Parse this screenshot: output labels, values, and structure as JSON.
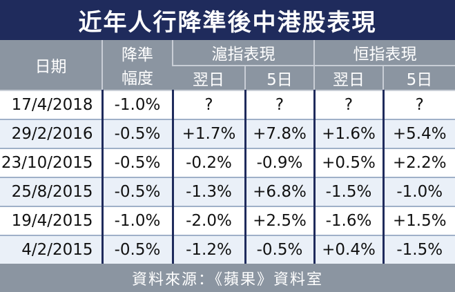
{
  "header": {
    "title": "近年人行降準後中港股表現"
  },
  "table": {
    "columns": {
      "date": "日期",
      "cut": [
        "降準",
        "幅度"
      ]
    },
    "groups": [
      "滬指表現",
      "恒指表現"
    ],
    "subheaders": [
      "翌日",
      "5日",
      "翌日",
      "5日"
    ],
    "rows": [
      [
        "17/4/2018",
        "-1.0%",
        "?",
        "?",
        "?",
        "?"
      ],
      [
        "29/2/2016",
        "-0.5%",
        "+1.7%",
        "+7.8%",
        "+1.6%",
        "+5.4%"
      ],
      [
        "23/10/2015",
        "-0.5%",
        "-0.2%",
        "-0.9%",
        "+0.5%",
        "+2.2%"
      ],
      [
        "25/8/2015",
        "-0.5%",
        "-1.3%",
        "+6.8%",
        "-1.5%",
        "-1.0%"
      ],
      [
        "19/4/2015",
        "-1.0%",
        "-2.0%",
        "+2.5%",
        "-1.6%",
        "+1.5%"
      ],
      [
        "4/2/2015",
        "-0.5%",
        "-1.2%",
        "-0.5%",
        "+0.4%",
        "-1.5%"
      ]
    ]
  },
  "footer": {
    "source": "資料來源：《蘋果》資料室"
  }
}
